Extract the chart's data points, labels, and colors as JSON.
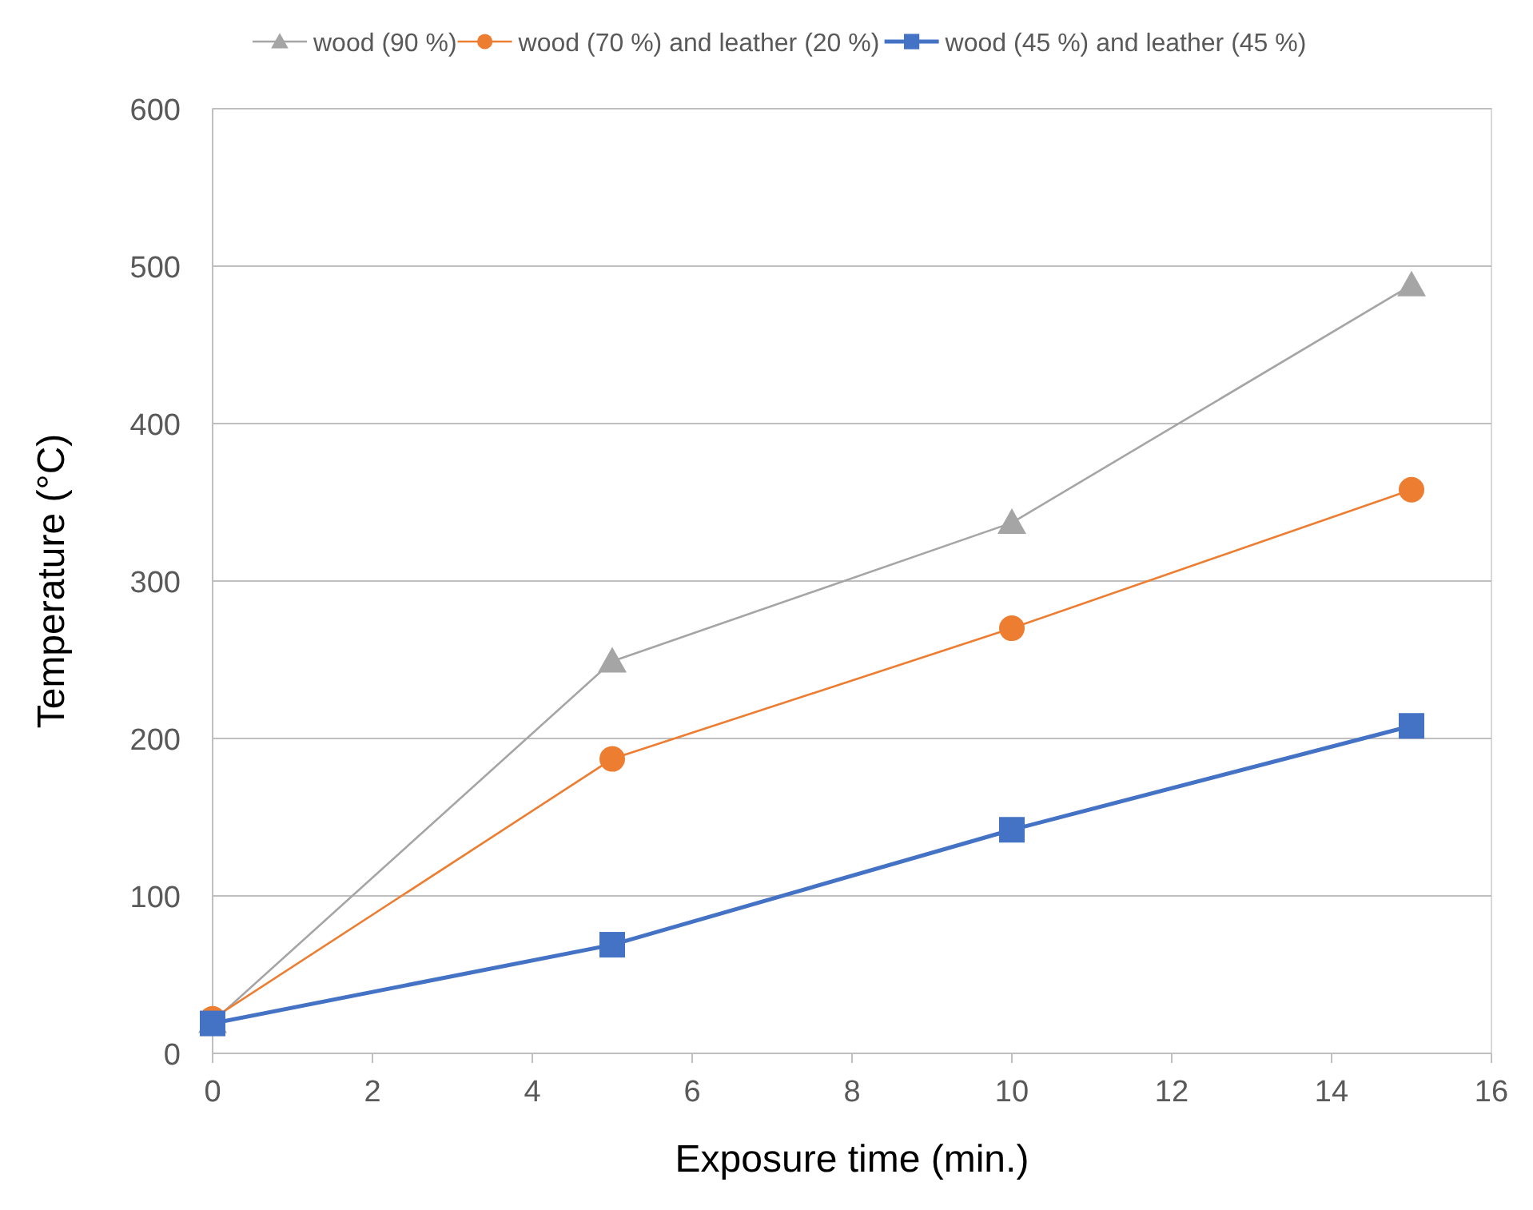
{
  "chart_data": {
    "type": "line",
    "xlabel": "Exposure time (min.)",
    "ylabel": "Temperature (°C)",
    "x": [
      0,
      5,
      10,
      15
    ],
    "series": [
      {
        "name": "wood (90 %)",
        "color": "#a5a5a5",
        "marker": "triangle",
        "values": [
          20,
          249,
          337,
          488
        ]
      },
      {
        "name": "wood (70 %) and leather (20 %)",
        "color": "#ed7d31",
        "marker": "circle",
        "values": [
          22,
          187,
          270,
          358
        ]
      },
      {
        "name": "wood (45 %) and leather (45 %)",
        "color": "#4472c4",
        "marker": "square",
        "values": [
          19,
          69,
          142,
          208
        ]
      }
    ],
    "xlim": [
      0,
      16
    ],
    "xticks": [
      0,
      2,
      4,
      6,
      8,
      10,
      12,
      14,
      16
    ],
    "ylim": [
      0,
      600
    ],
    "yticks": [
      0,
      100,
      200,
      300,
      400,
      500,
      600
    ],
    "grid": "y",
    "legend": "top"
  }
}
